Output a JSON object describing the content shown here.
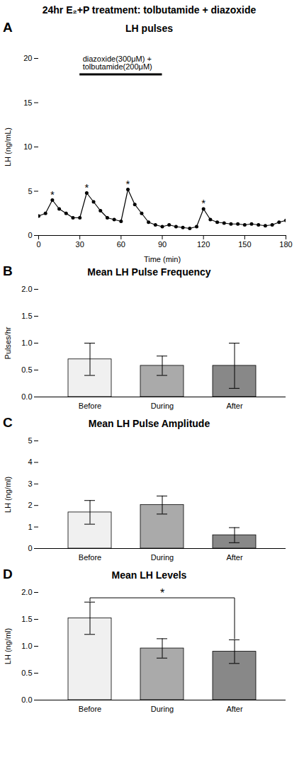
{
  "title": "24hr E₂+P treatment: tolbutamide + diazoxide",
  "chart_data": [
    {
      "type": "line",
      "panel_label": "A",
      "title": "LH pulses",
      "xlabel": "Time (min)",
      "ylabel": "LH (ng/mL)",
      "x": [
        0,
        5,
        10,
        15,
        20,
        25,
        30,
        35,
        40,
        45,
        50,
        55,
        60,
        65,
        70,
        75,
        80,
        85,
        90,
        95,
        100,
        105,
        110,
        115,
        120,
        125,
        130,
        135,
        140,
        145,
        150,
        155,
        160,
        165,
        170,
        175,
        180
      ],
      "values": [
        2.2,
        2.5,
        4.0,
        3.0,
        2.5,
        2.0,
        2.0,
        4.8,
        3.8,
        2.8,
        2.0,
        1.8,
        1.6,
        5.2,
        3.5,
        2.5,
        1.5,
        1.2,
        1.0,
        1.2,
        1.0,
        0.9,
        0.8,
        1.0,
        3.0,
        1.8,
        1.5,
        1.4,
        1.3,
        1.3,
        1.2,
        1.3,
        1.2,
        1.1,
        1.2,
        1.5,
        1.7
      ],
      "color": "black",
      "marker": "o",
      "xlim": [
        0,
        180
      ],
      "xticks": [
        0,
        30,
        60,
        90,
        120,
        150,
        180
      ],
      "ylim": [
        0,
        20
      ],
      "yticks": [
        0,
        5,
        10,
        15,
        20
      ],
      "grid": false,
      "annotations": [
        {
          "text": "*",
          "x": 10,
          "y": 4.0
        },
        {
          "text": "*",
          "x": 35,
          "y": 4.8
        },
        {
          "text": "*",
          "x": 65,
          "y": 5.2
        },
        {
          "text": "*",
          "x": 120,
          "y": 3.0
        }
      ],
      "treatment_bar": {
        "x1": 30,
        "x2": 90,
        "y": 18.2
      },
      "annotation": "diazoxide(300μM) +\ntolbutamide(200μM)"
    },
    {
      "type": "bar",
      "panel_label": "B",
      "title": "Mean LH Pulse Frequency",
      "ylabel": "Pulses/hr",
      "categories": [
        "Before",
        "During",
        "After"
      ],
      "values": [
        0.7,
        0.58,
        0.58
      ],
      "errors": [
        0.3,
        0.18,
        0.42
      ],
      "colors": [
        "#f0f0f0",
        "#aaaaaa",
        "#888888"
      ],
      "ylim": [
        0.0,
        2.0
      ],
      "yticks": [
        {
          "value": 0,
          "label": "0.0"
        },
        0.5,
        {
          "value": 1,
          "label": "1.0"
        },
        1.5,
        {
          "value": 2,
          "label": "2.0"
        }
      ],
      "grid": false
    },
    {
      "type": "bar",
      "panel_label": "C",
      "title": "Mean LH Pulse Amplitude",
      "ylabel": "LH (ng/ml)",
      "categories": [
        "Before",
        "During",
        "After"
      ],
      "values": [
        1.68,
        2.02,
        0.62
      ],
      "errors": [
        0.55,
        0.42,
        0.35
      ],
      "colors": [
        "#f0f0f0",
        "#aaaaaa",
        "#888888"
      ],
      "ylim": [
        0,
        5
      ],
      "yticks": [
        0,
        1,
        2,
        3,
        4,
        5
      ],
      "grid": false
    },
    {
      "type": "bar",
      "panel_label": "D",
      "title": "Mean LH Levels",
      "ylabel": "LH (ng/ml)",
      "categories": [
        "Before",
        "During",
        "After"
      ],
      "values": [
        1.52,
        0.96,
        0.9
      ],
      "errors": [
        0.3,
        0.18,
        0.22
      ],
      "colors": [
        "#f0f0f0",
        "#aaaaaa",
        "#888888"
      ],
      "ylim": [
        0.0,
        2.0
      ],
      "yticks": [
        {
          "value": 0,
          "label": "0.0"
        },
        0.5,
        {
          "value": 1,
          "label": "1.0"
        },
        1.5,
        {
          "value": 2,
          "label": "2.0"
        }
      ],
      "grid": false,
      "significance": {
        "from": "Before",
        "to": "After",
        "y": 1.9,
        "label": "*"
      }
    }
  ]
}
